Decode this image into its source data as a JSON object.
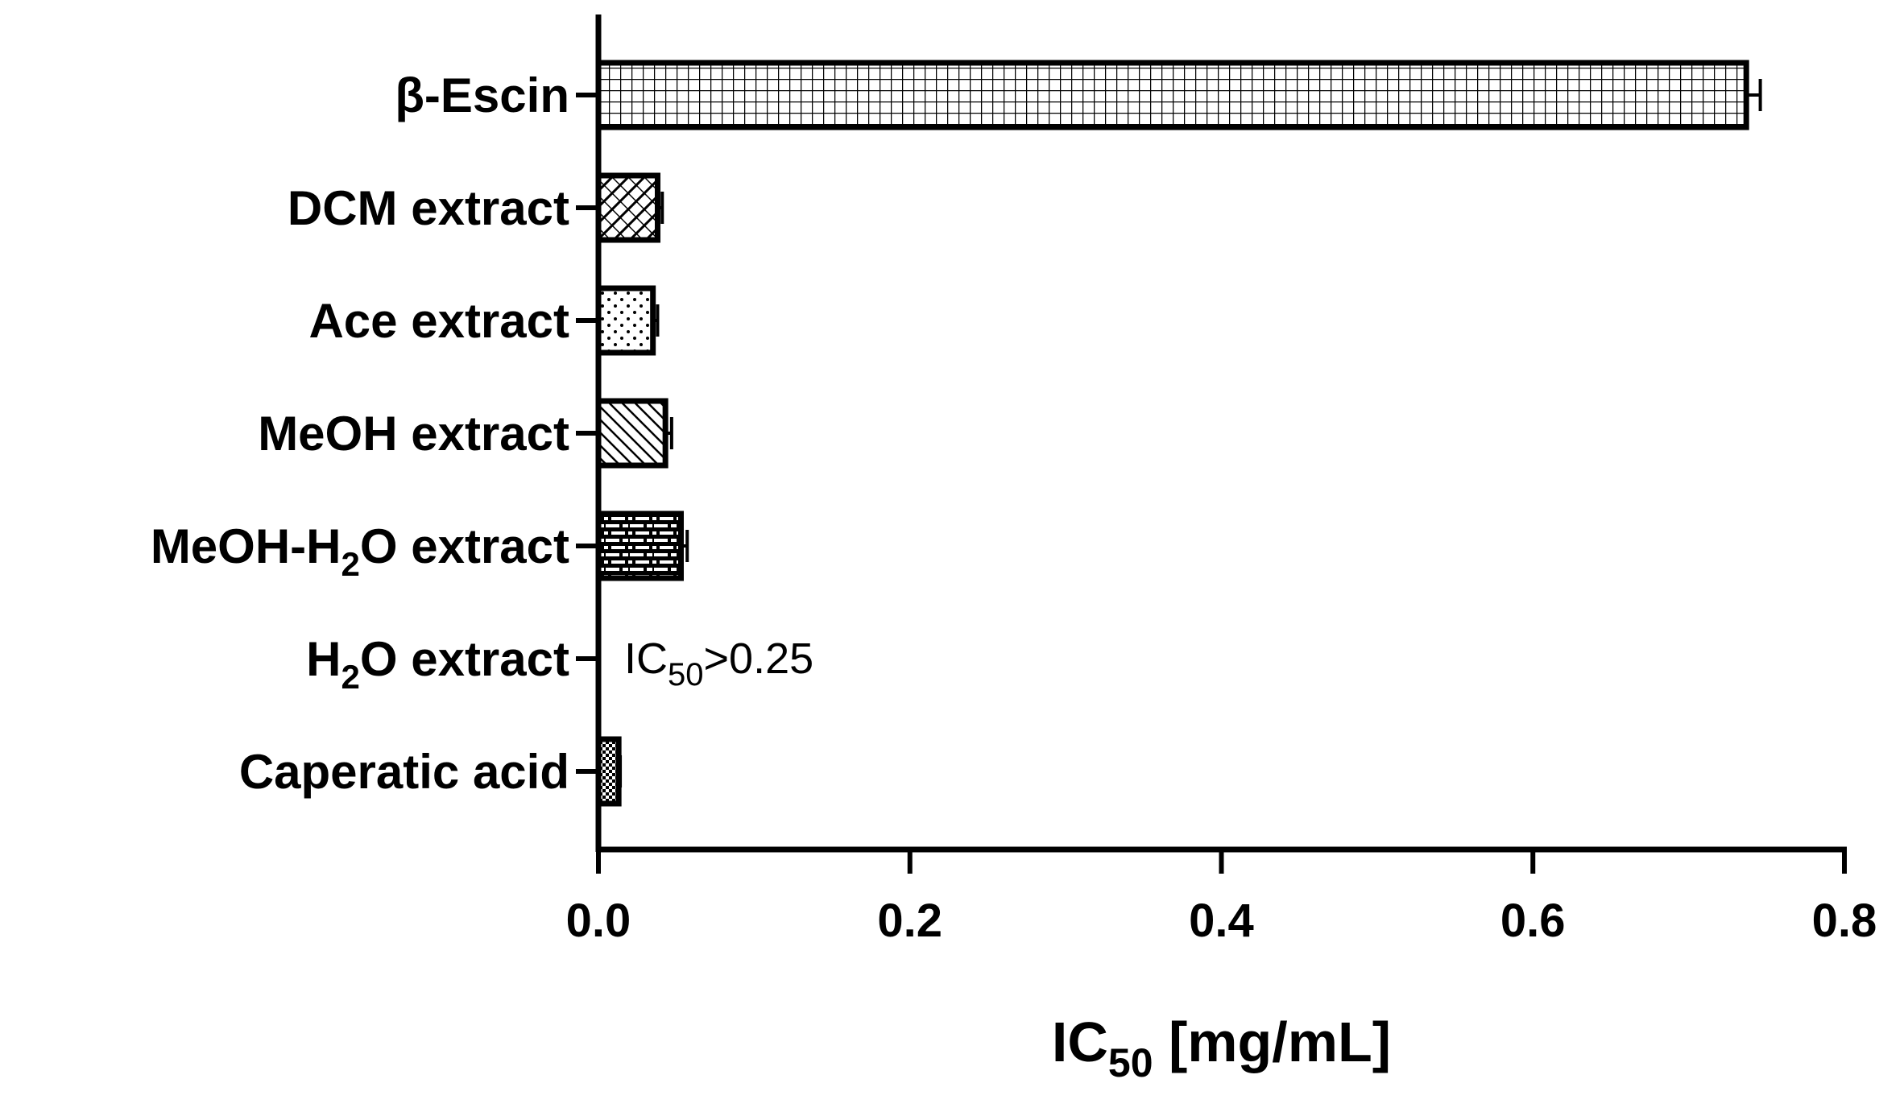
{
  "chart_data": {
    "type": "bar",
    "orientation": "horizontal",
    "categories": [
      {
        "text": "β-Escin",
        "sub": "",
        "post": ""
      },
      {
        "text": "DCM extract",
        "sub": "",
        "post": ""
      },
      {
        "text": "Ace extract",
        "sub": "",
        "post": ""
      },
      {
        "text": "MeOH extract",
        "sub": "",
        "post": ""
      },
      {
        "text": "MeOH-H",
        "sub": "2",
        "post": "O extract"
      },
      {
        "text": "H",
        "sub": "2",
        "post": "O extract"
      },
      {
        "text": "Caperatic acid",
        "sub": "",
        "post": ""
      }
    ],
    "values": [
      0.737,
      0.038,
      0.035,
      0.043,
      0.053,
      null,
      0.013
    ],
    "errors": [
      0.009,
      0.003,
      0.003,
      0.004,
      0.004,
      null,
      0.001
    ],
    "patterns": [
      "grid",
      "diag-cross",
      "dots",
      "diag-down",
      "bricks",
      "none",
      "checker"
    ],
    "xlabel": {
      "text": "IC",
      "sub": "50",
      "post": " [mg/mL]"
    },
    "xlim": [
      0,
      0.8
    ],
    "xticks": [
      "0.0",
      "0.2",
      "0.4",
      "0.6",
      "0.8"
    ],
    "xtick_values": [
      0,
      0.2,
      0.4,
      0.6,
      0.8
    ],
    "annotations": [
      {
        "category_index": 5,
        "text": "IC",
        "sub": "50",
        "post": ">0.25"
      }
    ],
    "grid": false,
    "legend": "none",
    "colors": {
      "bar_fill": "#ffffff",
      "bar_stroke": "#000000",
      "axis": "#000000"
    }
  }
}
